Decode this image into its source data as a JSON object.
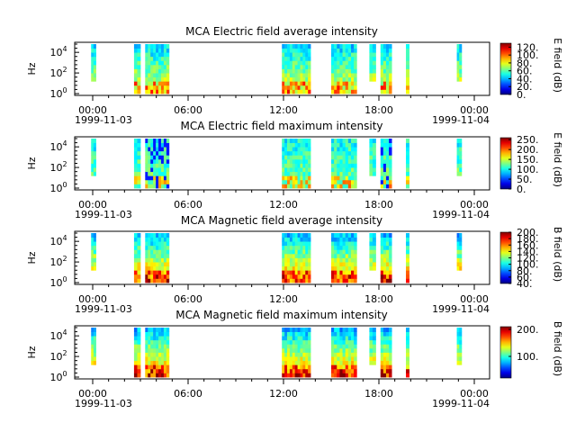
{
  "chart_data": [
    {
      "type": "heatmap",
      "title": "MCA  Electric field average intensity",
      "ylabel": "Hz",
      "colorbar_label": "E field (dB)",
      "colorbar_ticks": [
        "0.",
        "20.",
        "40.",
        "60.",
        "80.",
        "100.",
        "120."
      ],
      "colorbar_range": [
        0,
        130
      ],
      "y_tick_exponents": [
        "0",
        "2",
        "4"
      ],
      "x_ticks": [
        "00:00",
        "06:00",
        "12:00",
        "18:00",
        "00:00"
      ],
      "date_start": "1999-11-03",
      "date_end": "1999-11-04",
      "data_blocks_hours": [
        [
          -0.1,
          0.2
        ],
        [
          2.6,
          3.0
        ],
        [
          3.3,
          4.8
        ],
        [
          11.9,
          13.7
        ],
        [
          15.0,
          16.6
        ],
        [
          17.4,
          17.8
        ],
        [
          18.1,
          18.8
        ],
        [
          19.7,
          19.9
        ],
        [
          22.9,
          23.2
        ]
      ]
    },
    {
      "type": "heatmap",
      "title": "MCA  Electric field maximum intensity",
      "ylabel": "Hz",
      "colorbar_label": "E field (dB)",
      "colorbar_ticks": [
        "0.",
        "50.",
        "100.",
        "150.",
        "200.",
        "250."
      ],
      "colorbar_range": [
        0,
        260
      ],
      "y_tick_exponents": [
        "0",
        "2",
        "4"
      ],
      "x_ticks": [
        "00:00",
        "06:00",
        "12:00",
        "18:00",
        "00:00"
      ],
      "date_start": "1999-11-03",
      "date_end": "1999-11-04",
      "data_blocks_hours": [
        [
          -0.1,
          0.2
        ],
        [
          2.6,
          3.0
        ],
        [
          3.3,
          4.8
        ],
        [
          11.9,
          13.7
        ],
        [
          15.0,
          16.6
        ],
        [
          17.4,
          17.8
        ],
        [
          18.1,
          18.8
        ],
        [
          19.7,
          19.9
        ],
        [
          22.9,
          23.2
        ]
      ]
    },
    {
      "type": "heatmap",
      "title": "MCA  Magnetic field average intensity",
      "ylabel": "Hz",
      "colorbar_label": "B field (dB)",
      "colorbar_ticks": [
        "40.",
        "60.",
        "80.",
        "100.",
        "120.",
        "140.",
        "160.",
        "180.",
        "200."
      ],
      "colorbar_range": [
        40,
        200
      ],
      "y_tick_exponents": [
        "0",
        "2",
        "4"
      ],
      "x_ticks": [
        "00:00",
        "06:00",
        "12:00",
        "18:00",
        "00:00"
      ],
      "date_start": "1999-11-03",
      "date_end": "1999-11-04",
      "data_blocks_hours": [
        [
          -0.1,
          0.2
        ],
        [
          2.6,
          3.0
        ],
        [
          3.3,
          4.8
        ],
        [
          11.9,
          13.7
        ],
        [
          15.0,
          16.6
        ],
        [
          17.4,
          17.8
        ],
        [
          18.1,
          18.8
        ],
        [
          19.7,
          19.9
        ],
        [
          22.9,
          23.2
        ]
      ]
    },
    {
      "type": "heatmap",
      "title": "MCA  Magnetic field maximum intensity",
      "ylabel": "Hz",
      "colorbar_label": "B field (dB)",
      "colorbar_ticks": [
        "100.",
        "200."
      ],
      "colorbar_range": [
        20,
        210
      ],
      "y_tick_exponents": [
        "0",
        "2",
        "4"
      ],
      "x_ticks": [
        "00:00",
        "06:00",
        "12:00",
        "18:00",
        "00:00"
      ],
      "date_start": "1999-11-03",
      "date_end": "1999-11-04",
      "data_blocks_hours": [
        [
          -0.1,
          0.2
        ],
        [
          2.6,
          3.0
        ],
        [
          3.3,
          4.8
        ],
        [
          11.9,
          13.7
        ],
        [
          15.0,
          16.6
        ],
        [
          17.4,
          17.8
        ],
        [
          18.1,
          18.8
        ],
        [
          19.7,
          19.9
        ],
        [
          22.9,
          23.2
        ]
      ]
    }
  ]
}
